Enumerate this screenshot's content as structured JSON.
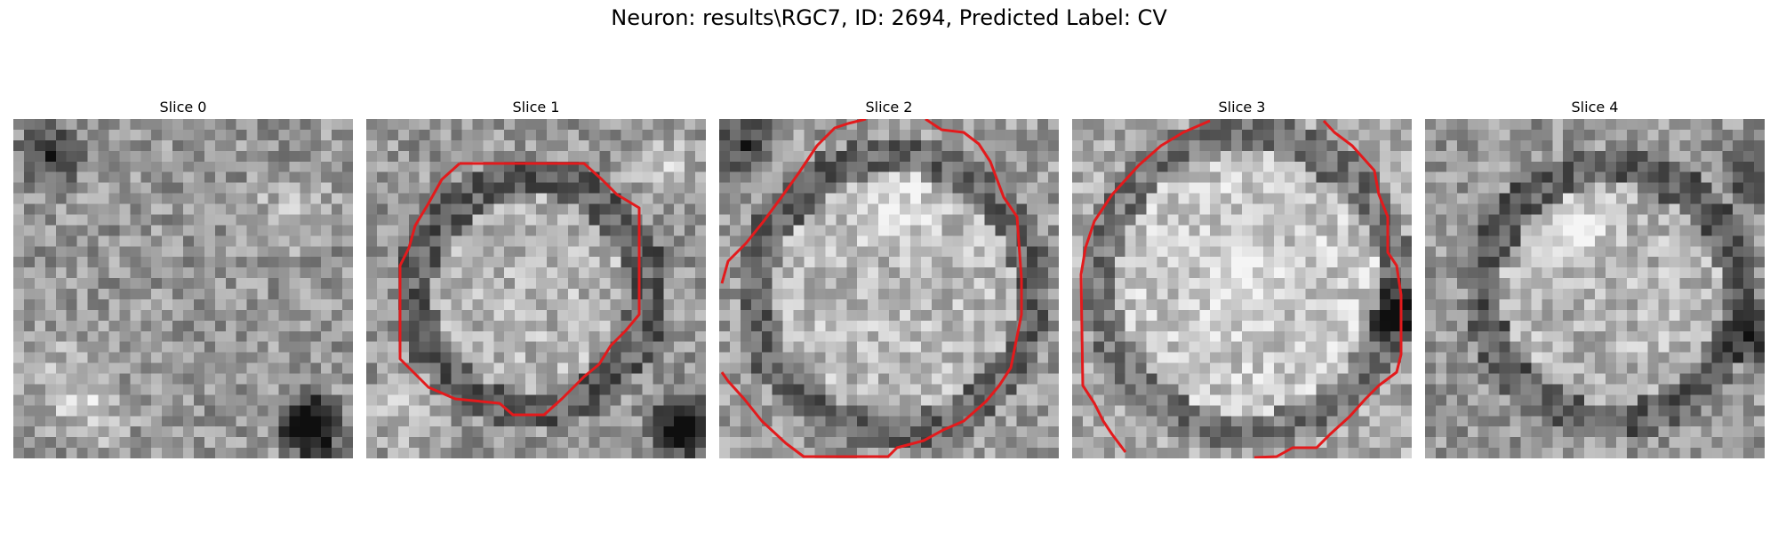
{
  "figure": {
    "title": "Neuron: results\\RGC7, ID: 2694, Predicted Label: CV",
    "slices": [
      {
        "label": "Slice 0",
        "has_contour": false
      },
      {
        "label": "Slice 1",
        "has_contour": true
      },
      {
        "label": "Slice 2",
        "has_contour": true
      },
      {
        "label": "Slice 3",
        "has_contour": true
      },
      {
        "label": "Slice 4",
        "has_contour": false
      }
    ],
    "contour_color": "#e31a1c"
  }
}
